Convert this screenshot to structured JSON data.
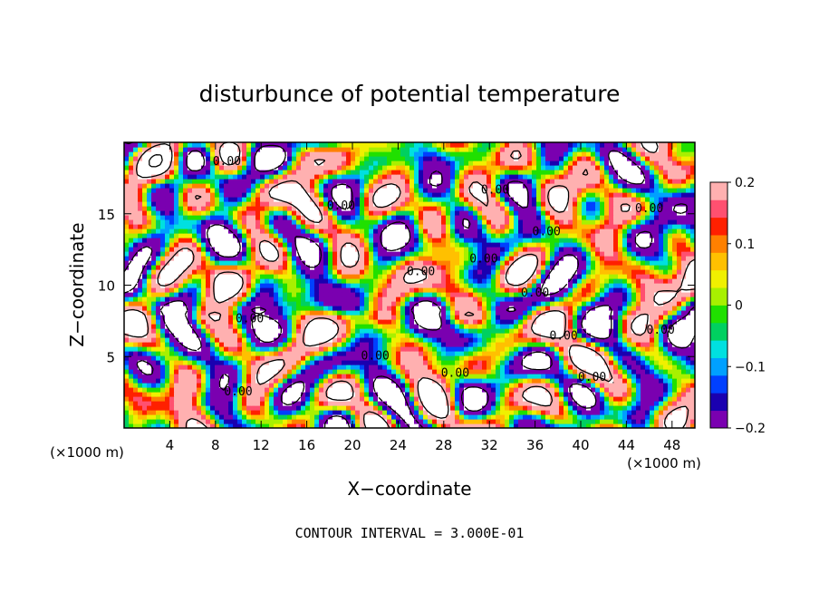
{
  "chart_data": {
    "type": "heatmap",
    "title": "disturbunce of potential temperature",
    "xlabel": "X−coordinate",
    "ylabel": "Z−coordinate",
    "x_unit": "(×1000 m)",
    "x_unit_right": "(×1000 m)",
    "xlim": [
      0,
      50
    ],
    "ylim": [
      0,
      20
    ],
    "x_ticks": [
      4,
      8,
      12,
      16,
      20,
      24,
      28,
      32,
      36,
      40,
      44,
      48
    ],
    "y_ticks": [
      5,
      10,
      15
    ],
    "colorbar": {
      "min": -0.2,
      "max": 0.2,
      "ticks": [
        0.2,
        0.1,
        0,
        -0.1,
        -0.2
      ],
      "tick_labels": [
        "0.2",
        "0.1",
        "0",
        "−0.1",
        "−0.2"
      ],
      "colors": [
        "#7a00b0",
        "#1a00b0",
        "#0040ff",
        "#00a0ff",
        "#00e0e0",
        "#00d060",
        "#20e000",
        "#a8f000",
        "#f0f000",
        "#ffc000",
        "#ff8000",
        "#ff2000",
        "#ff5070",
        "#ffb0b0"
      ]
    },
    "contour_label": "0.00",
    "footer": "CONTOUR INTERVAL = 3.000E-01",
    "grid": false
  }
}
